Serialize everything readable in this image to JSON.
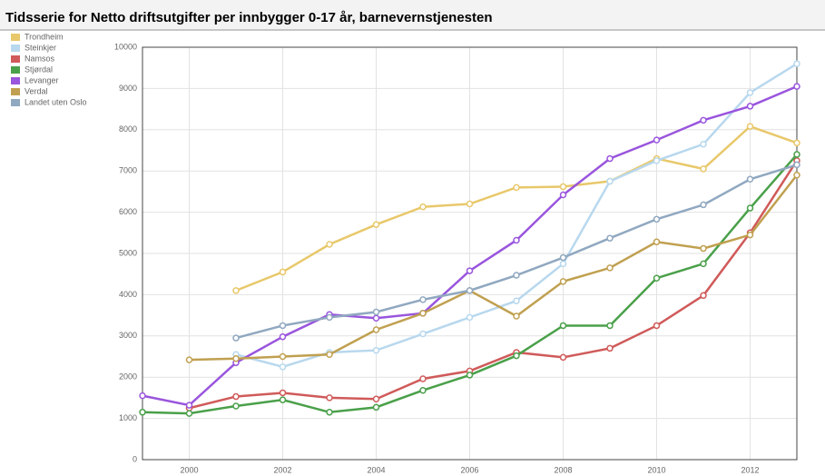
{
  "chart_data": {
    "type": "line",
    "title": "Tidsserie for Netto driftsutgifter per innbygger 0-17 år, barnevernstjenesten",
    "x": [
      1999,
      2000,
      2001,
      2002,
      2003,
      2004,
      2005,
      2006,
      2007,
      2008,
      2009,
      2010,
      2011,
      2012,
      2013
    ],
    "series": [
      {
        "name": "Trondheim",
        "color": "#e8c86a",
        "values": [
          null,
          null,
          4100,
          4550,
          5220,
          5700,
          6130,
          6200,
          6600,
          6620,
          6750,
          7300,
          7050,
          8080,
          7680
        ]
      },
      {
        "name": "Steinkjer",
        "color": "#b8d8ee",
        "values": [
          null,
          null,
          2550,
          2250,
          2600,
          2650,
          3050,
          3450,
          3850,
          4750,
          6750,
          7250,
          7650,
          8900,
          9600
        ]
      },
      {
        "name": "Namsos",
        "color": "#d05a5a",
        "values": [
          null,
          1250,
          1530,
          1620,
          1500,
          1470,
          1960,
          2150,
          2600,
          2480,
          2700,
          3250,
          3980,
          5500,
          7250
        ]
      },
      {
        "name": "Stjørdal",
        "color": "#4aa04a",
        "values": [
          1150,
          1120,
          1300,
          1450,
          1150,
          1270,
          1680,
          2050,
          2520,
          3250,
          3250,
          4400,
          4750,
          6100,
          7400
        ]
      },
      {
        "name": "Levanger",
        "color": "#9955dd",
        "values": [
          1550,
          1320,
          2350,
          2980,
          3520,
          3430,
          3550,
          4580,
          5320,
          6420,
          7300,
          7750,
          8230,
          8570,
          9050
        ]
      },
      {
        "name": "Verdal",
        "color": "#c0a050",
        "values": [
          null,
          2420,
          2450,
          2500,
          2550,
          3150,
          3550,
          4100,
          3480,
          4320,
          4650,
          5280,
          5120,
          5450,
          6900
        ]
      },
      {
        "name": "Landet uten Oslo",
        "color": "#90a8c0",
        "values": [
          null,
          null,
          2950,
          3250,
          3450,
          3580,
          3880,
          4100,
          4470,
          4900,
          5370,
          5830,
          6180,
          6800,
          7150
        ]
      }
    ],
    "xlim": [
      1999,
      2013
    ],
    "xticks": [
      2000,
      2002,
      2004,
      2006,
      2008,
      2010,
      2012
    ],
    "ylim": [
      0,
      10000
    ],
    "yticks": [
      0,
      1000,
      2000,
      3000,
      4000,
      5000,
      6000,
      7000,
      8000,
      9000,
      10000
    ],
    "grid": true,
    "legend": "top-left"
  }
}
